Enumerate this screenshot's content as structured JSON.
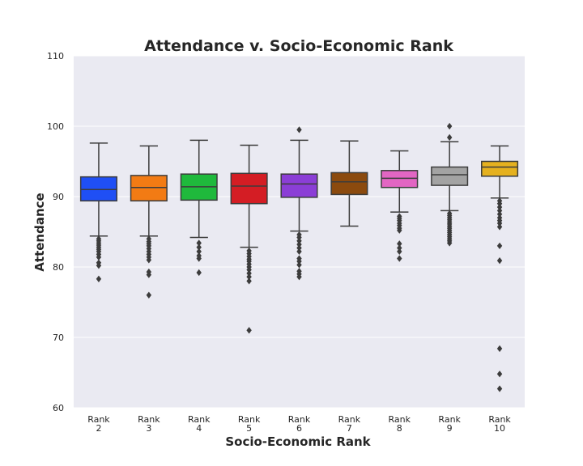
{
  "chart_data": {
    "type": "box",
    "title": "Attendance v. Socio-Economic Rank",
    "xlabel": "Socio-Economic Rank",
    "ylabel": "Attendance",
    "ylim": [
      60,
      110
    ],
    "yticks": [
      60,
      70,
      80,
      90,
      100,
      110
    ],
    "grid": true,
    "categories": [
      {
        "line1": "Rank",
        "line2": "2"
      },
      {
        "line1": "Rank",
        "line2": "3"
      },
      {
        "line1": "Rank",
        "line2": "4"
      },
      {
        "line1": "Rank",
        "line2": "5"
      },
      {
        "line1": "Rank",
        "line2": "6"
      },
      {
        "line1": "Rank",
        "line2": "7"
      },
      {
        "line1": "Rank",
        "line2": "8"
      },
      {
        "line1": "Rank",
        "line2": "9"
      },
      {
        "line1": "Rank",
        "line2": "10"
      }
    ],
    "colors": {
      "background": "#eaeaf2",
      "grid": "#ffffff",
      "boxes": [
        "#1f4ff5",
        "#f27b14",
        "#1fb93c",
        "#d41d24",
        "#8b3ed6",
        "#8b4a0e",
        "#e266c3",
        "#a3a3a3",
        "#e5b11f"
      ],
      "edges": "#3c3c3c"
    },
    "boxes": [
      {
        "min": 84.4,
        "q1": 89.4,
        "median": 91.0,
        "q3": 92.8,
        "max": 97.6,
        "outliers": [
          84.0,
          83.7,
          83.4,
          83.1,
          82.8,
          82.5,
          82.2,
          81.8,
          81.4,
          80.6,
          80.2,
          78.3
        ]
      },
      {
        "min": 84.4,
        "q1": 89.4,
        "median": 91.3,
        "q3": 93.0,
        "max": 97.2,
        "outliers": [
          84.0,
          83.6,
          83.3,
          83.0,
          82.6,
          82.2,
          81.8,
          81.4,
          81.0,
          79.3,
          78.9,
          76.0
        ]
      },
      {
        "min": 84.2,
        "q1": 89.5,
        "median": 91.4,
        "q3": 93.2,
        "max": 98.0,
        "outliers": [
          83.4,
          82.8,
          82.2,
          81.6,
          81.2,
          79.2
        ]
      },
      {
        "min": 82.8,
        "q1": 89.0,
        "median": 91.5,
        "q3": 93.3,
        "max": 97.3,
        "outliers": [
          82.3,
          81.9,
          81.5,
          81.1,
          80.8,
          80.4,
          80.0,
          79.6,
          79.1,
          78.6,
          78.0,
          71.0
        ]
      },
      {
        "min": 85.1,
        "q1": 89.9,
        "median": 91.8,
        "q3": 93.2,
        "max": 98.0,
        "outliers": [
          99.5,
          84.6,
          84.2,
          83.7,
          83.2,
          82.7,
          82.2,
          81.2,
          80.8,
          80.3,
          79.4,
          79.0,
          78.6
        ]
      },
      {
        "min": 85.8,
        "q1": 90.3,
        "median": 92.1,
        "q3": 93.4,
        "max": 97.9,
        "outliers": []
      },
      {
        "min": 87.8,
        "q1": 91.3,
        "median": 92.6,
        "q3": 93.7,
        "max": 96.5,
        "outliers": [
          87.2,
          86.9,
          86.6,
          86.2,
          85.9,
          85.5,
          85.2,
          83.3,
          82.7,
          82.2,
          81.2
        ]
      },
      {
        "min": 88.0,
        "q1": 91.6,
        "median": 93.1,
        "q3": 94.2,
        "max": 97.8,
        "outliers": [
          100.0,
          98.4,
          87.6,
          87.3,
          87.0,
          86.7,
          86.4,
          86.1,
          85.8,
          85.5,
          85.2,
          84.9,
          84.6,
          84.3,
          84.0,
          83.7,
          83.4
        ]
      },
      {
        "min": 89.8,
        "q1": 92.9,
        "median": 94.2,
        "q3": 95.0,
        "max": 97.2,
        "outliers": [
          89.4,
          89.0,
          88.5,
          88.0,
          87.5,
          87.0,
          86.6,
          86.2,
          85.7,
          83.0,
          80.9,
          68.4,
          64.8,
          62.7
        ]
      }
    ]
  }
}
